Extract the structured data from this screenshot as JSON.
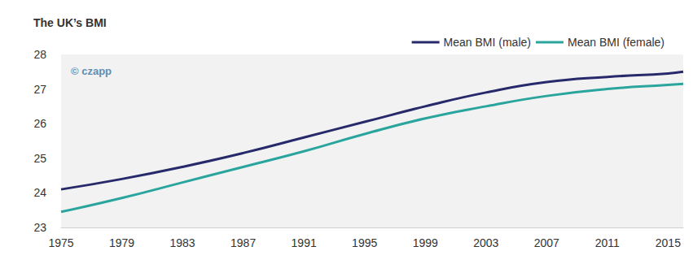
{
  "chart_data": {
    "type": "line",
    "title": "The UK’s BMI",
    "annotations": [
      "© czapp"
    ],
    "x": [
      1975,
      1979,
      1983,
      1987,
      1991,
      1995,
      1999,
      2003,
      2007,
      2011,
      2015,
      2016
    ],
    "series": [
      {
        "name": "Mean BMI (male)",
        "color": "#27296b",
        "values": [
          24.1,
          24.4,
          24.75,
          25.15,
          25.6,
          26.05,
          26.5,
          26.9,
          27.2,
          27.35,
          27.45,
          27.5
        ]
      },
      {
        "name": "Mean BMI (female)",
        "color": "#2aa59e",
        "values": [
          23.45,
          23.85,
          24.3,
          24.75,
          25.2,
          25.7,
          26.15,
          26.5,
          26.8,
          27.0,
          27.12,
          27.15
        ]
      }
    ],
    "xlim": [
      1975,
      2016
    ],
    "xticks": [
      1975,
      1979,
      1983,
      1987,
      1991,
      1995,
      1999,
      2003,
      2007,
      2011,
      2015
    ],
    "ylim": [
      23,
      28
    ],
    "yticks": [
      23,
      24,
      25,
      26,
      27,
      28
    ],
    "legend": "top-right"
  }
}
